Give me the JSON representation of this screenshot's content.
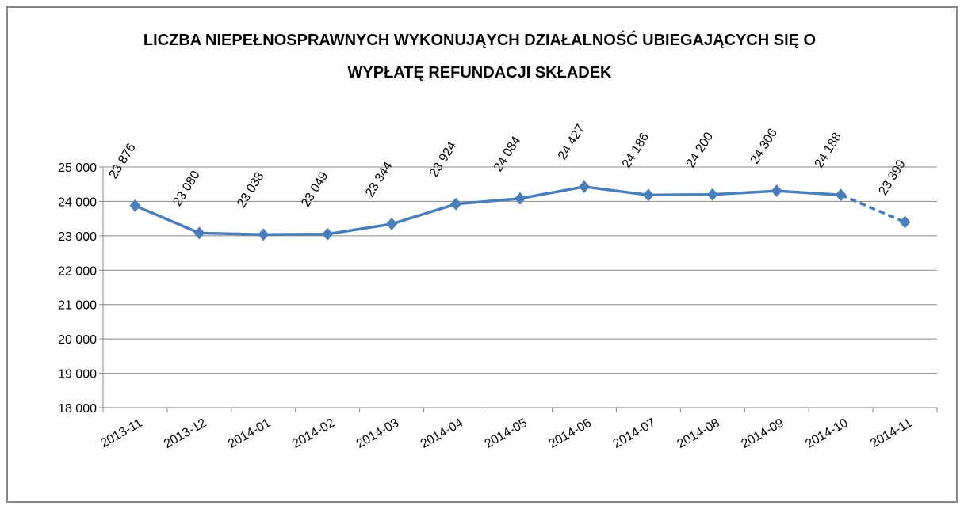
{
  "chart_data": {
    "type": "line",
    "title": [
      "LICZBA NIEPEŁNOSPRAWNYCH WYKONUJĄYCH DZIAŁALNOŚĆ UBIEGAJĄCYCH SIĘ O",
      "WYPŁATĘ REFUNDACJI SKŁADEK"
    ],
    "categories": [
      "2013-11",
      "2013-12",
      "2014-01",
      "2014-02",
      "2014-03",
      "2014-04",
      "2014-05",
      "2014-06",
      "2014-07",
      "2014-08",
      "2014-09",
      "2014-10",
      "2014-11"
    ],
    "series": [
      {
        "color": "#4a7ebb",
        "values": [
          23876,
          23080,
          23038,
          23049,
          23344,
          23924,
          24084,
          24427,
          24186,
          24200,
          24306,
          24188,
          23399
        ],
        "value_labels": [
          "23 876",
          "23 080",
          "23 038",
          "23 049",
          "23 344",
          "23 924",
          "24 084",
          "24 427",
          "24 186",
          "24 200",
          "24 306",
          "24 188",
          "23 399"
        ]
      }
    ],
    "dashed_segments": [
      11
    ],
    "ylim": [
      18000,
      25000
    ],
    "yticks": [
      {
        "value": 18000,
        "label": "18 000"
      },
      {
        "value": 19000,
        "label": "19 000"
      },
      {
        "value": 20000,
        "label": "20 000"
      },
      {
        "value": 21000,
        "label": "21 000"
      },
      {
        "value": 22000,
        "label": "22 000"
      },
      {
        "value": 23000,
        "label": "23 000"
      },
      {
        "value": 24000,
        "label": "24 000"
      },
      {
        "value": 25000,
        "label": "25 000"
      }
    ],
    "grid": true
  }
}
